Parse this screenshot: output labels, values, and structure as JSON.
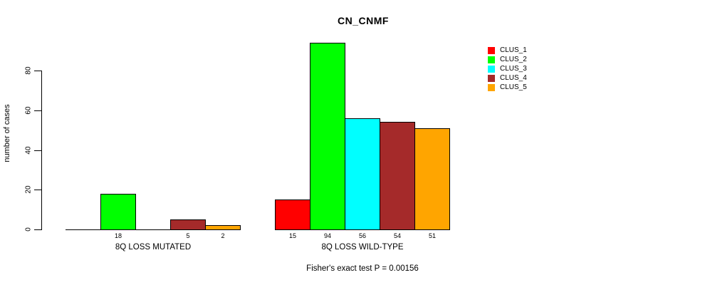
{
  "title": "CN_CNMF",
  "footer": "Fisher's exact test P = 0.00156",
  "chart_data": {
    "type": "bar",
    "title": "CN_CNMF",
    "xlabel": "",
    "ylabel": "number of cases",
    "ylim": [
      0,
      80
    ],
    "yticks": [
      "0",
      "20",
      "40",
      "60",
      "80"
    ],
    "grid": false,
    "legend_position": "top-right",
    "series_names": [
      "CLUS_1",
      "CLUS_2",
      "CLUS_3",
      "CLUS_4",
      "CLUS_5"
    ],
    "series_colors": [
      "#ff0000",
      "#00ff00",
      "#00ffff",
      "#a52a2a",
      "#ffa500"
    ],
    "groups": [
      {
        "label": "8Q LOSS MUTATED",
        "values": [
          0,
          18,
          0,
          5,
          2
        ],
        "bar_labels": [
          "",
          "18",
          "",
          "5",
          "2"
        ]
      },
      {
        "label": "8Q LOSS WILD-TYPE",
        "values": [
          15,
          94,
          56,
          54,
          51
        ],
        "bar_labels": [
          "15",
          "94",
          "56",
          "54",
          "51"
        ]
      }
    ],
    "annotation": "Fisher's exact test P = 0.00156"
  }
}
